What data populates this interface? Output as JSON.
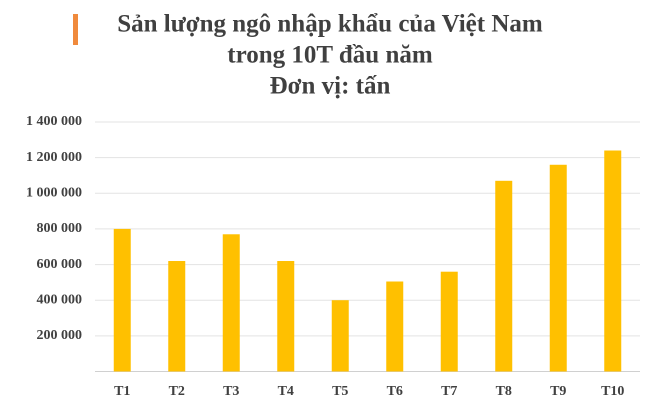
{
  "chart_data": {
    "type": "bar",
    "title": [
      "Sản lượng ngô nhập khẩu của Việt Nam",
      "trong 10T đầu năm"
    ],
    "subtitle": "Đơn vị: tấn",
    "categories": [
      "T1",
      "T2",
      "T3",
      "T4",
      "T5",
      "T6",
      "T7",
      "T8",
      "T9",
      "T10"
    ],
    "values": [
      800000,
      620000,
      770000,
      620000,
      400000,
      505000,
      560000,
      1070000,
      1160000,
      1240000
    ],
    "color": "#ffc000",
    "ylim": [
      0,
      1400000
    ],
    "yticks": [
      {
        "value": 200000,
        "label": "200 000"
      },
      {
        "value": 400000,
        "label": "400 000"
      },
      {
        "value": 600000,
        "label": "600 000"
      },
      {
        "value": 800000,
        "label": "800 000"
      },
      {
        "value": 1000000,
        "label": "1 000 000"
      },
      {
        "value": 1200000,
        "label": "1 200 000"
      },
      {
        "value": 1400000,
        "label": "1 400 000"
      }
    ],
    "grid": true
  }
}
